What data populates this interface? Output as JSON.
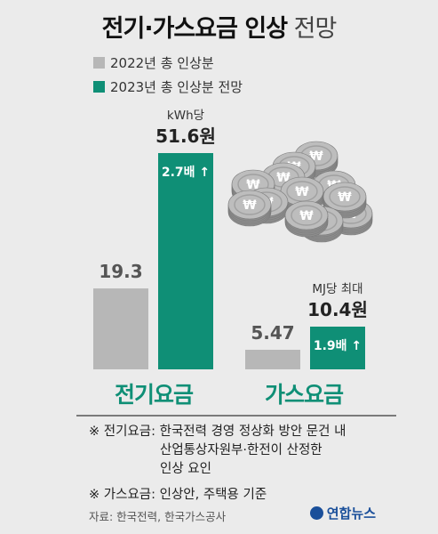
{
  "title": {
    "bold": "전기·가스요금 인상",
    "light": "전망"
  },
  "colors": {
    "gray": "#b7b7b7",
    "teal": "#0f8f76",
    "label_dark": "#222222"
  },
  "icons": [
    "won-coin-stack-icon"
  ],
  "chart_data": {
    "type": "bar",
    "categories": [
      "전기요금",
      "가스요금"
    ],
    "series": [
      {
        "name": "2022년 총 인상분",
        "values": [
          19.3,
          5.47
        ]
      },
      {
        "name": "2023년 총 인상분 전망",
        "values": [
          51.6,
          10.4
        ]
      }
    ],
    "value_labels": {
      "s2022": [
        "19.3",
        "5.47"
      ],
      "s2023": [
        "51.6원",
        "10.4원"
      ]
    },
    "units": [
      "kWh당",
      "MJ당 최대"
    ],
    "growth": [
      "2.7배",
      "1.9배"
    ],
    "legend_position": "top-left",
    "grid": false
  },
  "notes": {
    "electric_line1": "※ 전기요금: 한국전력 경영 정상화 방안 문건 내",
    "electric_line2": "산업통상자원부·한전이 산정한",
    "electric_line3": "인상 요인",
    "gas": "※ 가스요금: 인상안, 주택용 기준"
  },
  "source": "자료: 한국전력, 한국가스공사",
  "logo": "연합뉴스"
}
